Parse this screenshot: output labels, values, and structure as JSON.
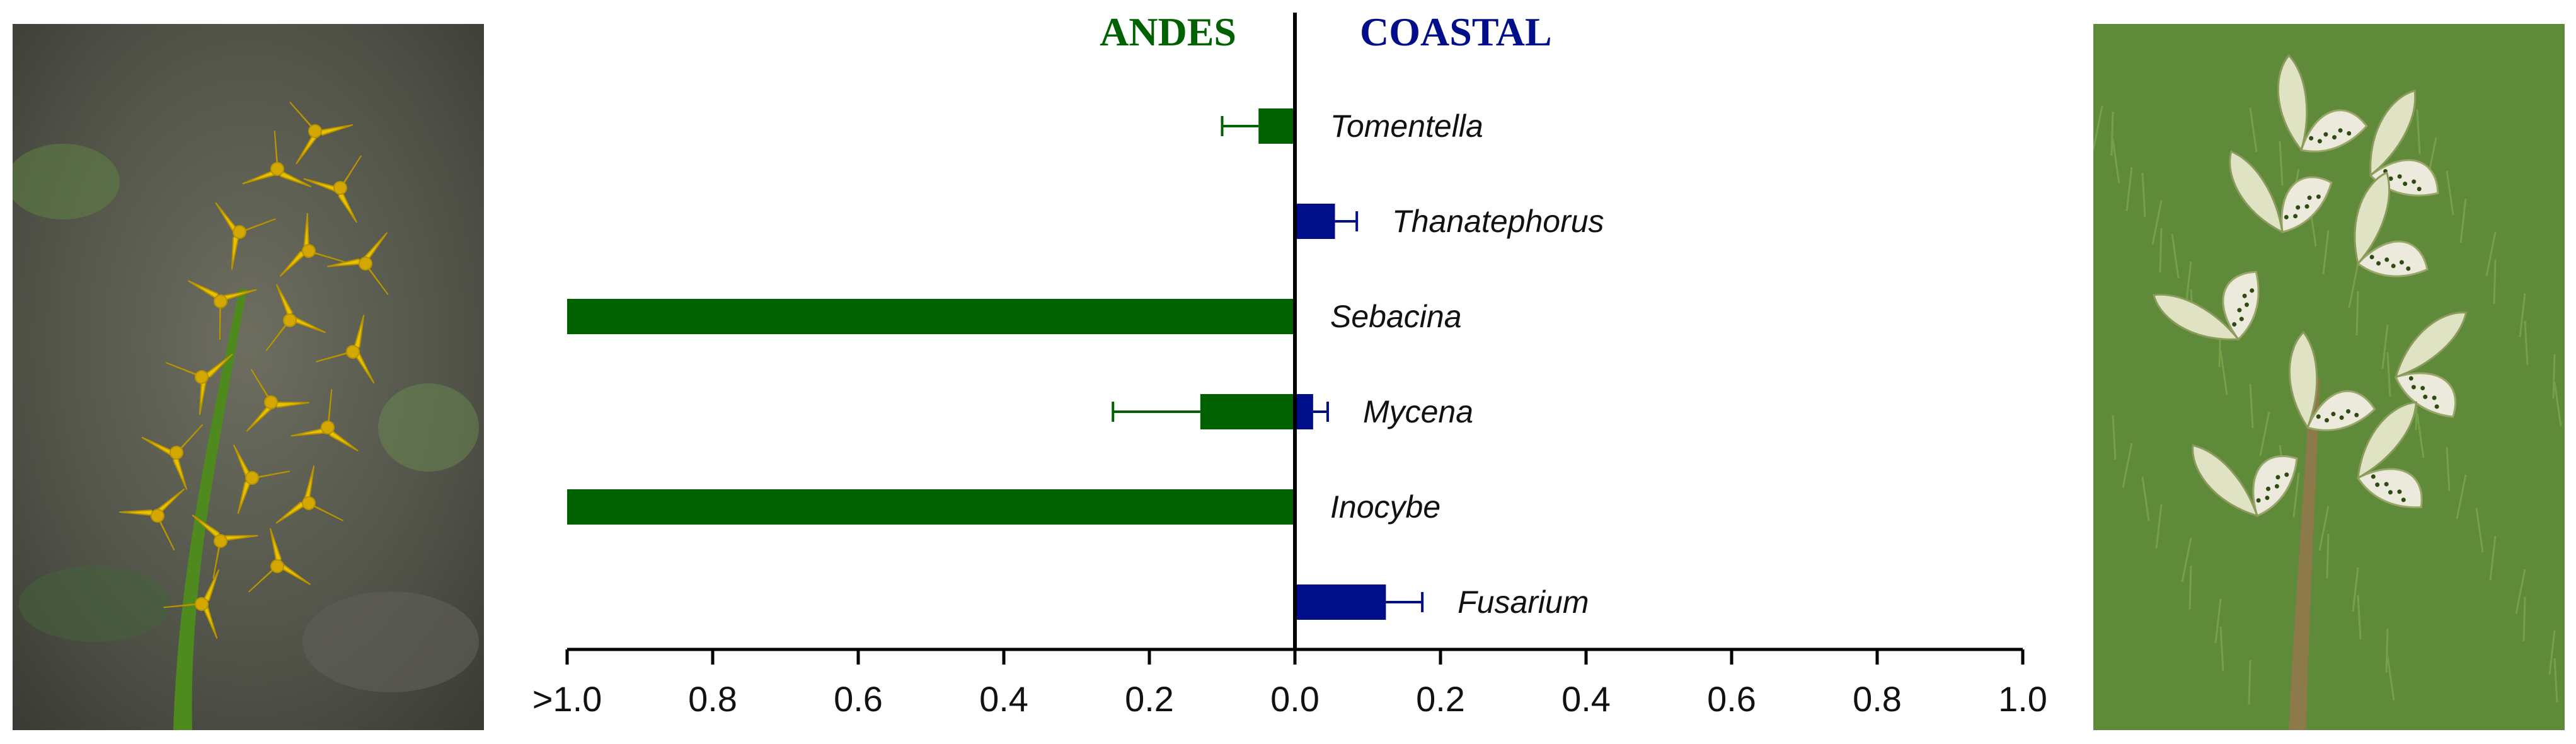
{
  "chart_data": {
    "type": "bar",
    "orientation": "horizontal",
    "diverging": true,
    "regions": {
      "left": "ANDES",
      "right": "COASTAL"
    },
    "region_colors": {
      "left": "#006100",
      "right": "#000e8a"
    },
    "categories": [
      "Tomentella",
      "Thanatephorus",
      "Sebacina",
      "Mycena",
      "Inocybe",
      "Fusarium"
    ],
    "series": [
      {
        "name": "ANDES",
        "values": [
          0.05,
          0,
          1.0,
          0.13,
          1.0,
          0
        ],
        "errors": [
          0.05,
          0,
          0,
          0.12,
          0,
          0
        ]
      },
      {
        "name": "COASTAL",
        "values": [
          0,
          0.055,
          0,
          0.025,
          0,
          0.125
        ],
        "errors": [
          0,
          0.03,
          0,
          0.02,
          0,
          0.05
        ]
      }
    ],
    "xlim": [
      -1.0,
      1.0
    ],
    "tick_values": [
      -1.0,
      -0.8,
      -0.6,
      -0.4,
      -0.2,
      0.0,
      0.2,
      0.4,
      0.6,
      0.8,
      1.0
    ],
    "tick_labels": [
      ">1.0",
      "0.8",
      "0.6",
      "0.4",
      "0.2",
      "0.0",
      "0.2",
      "0.4",
      "0.6",
      "0.8",
      "1.0"
    ],
    "xlabel": "",
    "ylabel": "",
    "title": ""
  },
  "photos": {
    "left": {
      "subject": "yellow-orchid-inflorescence-icon",
      "palette": [
        "#5a5b4e",
        "#e8c200",
        "#4f8a1e"
      ]
    },
    "right": {
      "subject": "white-green-orchid-flowers-icon",
      "palette": [
        "#5e8a3a",
        "#eceadc",
        "#2f4a12"
      ]
    }
  }
}
